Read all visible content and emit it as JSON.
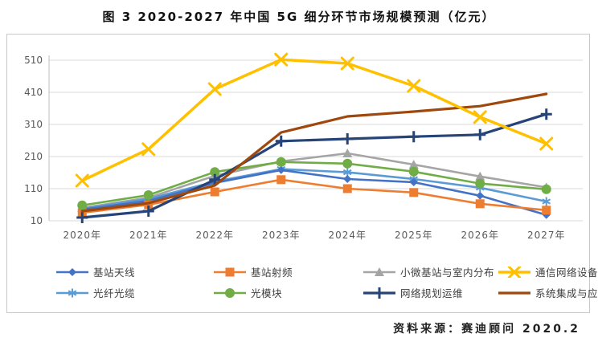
{
  "title": "图 3 2020-2027 年中国 5G 细分环节市场规模预测（亿元）",
  "source": "资料来源：赛迪顾问  2020.2",
  "chart_data": {
    "type": "line",
    "title": "图 3 2020-2027 年中国 5G 细分环节市场规模预测（亿元）",
    "categories": [
      "2020年",
      "2021年",
      "2022年",
      "2023年",
      "2024年",
      "2025年",
      "2026年",
      "2027年"
    ],
    "series": [
      {
        "name": "基站天线",
        "color": "#4472C4",
        "marker": "diamond",
        "values": [
          45,
          72,
          128,
          168,
          140,
          130,
          88,
          28
        ]
      },
      {
        "name": "基站射频",
        "color": "#ED7D31",
        "marker": "square",
        "values": [
          35,
          60,
          100,
          138,
          110,
          98,
          63,
          43
        ]
      },
      {
        "name": "小微基站与室内分布",
        "color": "#A5A5A5",
        "marker": "triangle",
        "values": [
          50,
          82,
          150,
          195,
          220,
          185,
          148,
          114
        ]
      },
      {
        "name": "通信网络设备",
        "color": "#FFC000",
        "marker": "x",
        "values": [
          135,
          233,
          420,
          512,
          500,
          430,
          333,
          250
        ]
      },
      {
        "name": "光纤光缆",
        "color": "#5B9BD5",
        "marker": "asterisk",
        "values": [
          48,
          78,
          132,
          171,
          161,
          140,
          113,
          70
        ]
      },
      {
        "name": "光模块",
        "color": "#70AD47",
        "marker": "circle",
        "values": [
          58,
          90,
          162,
          193,
          188,
          163,
          126,
          108
        ]
      },
      {
        "name": "网络规划运维",
        "color": "#264478",
        "marker": "plus",
        "values": [
          20,
          40,
          138,
          258,
          265,
          272,
          278,
          342
        ]
      },
      {
        "name": "系统集成与应用服务",
        "color": "#9E480E",
        "marker": "none",
        "values": [
          40,
          65,
          120,
          285,
          335,
          350,
          367,
          405
        ]
      }
    ],
    "ylim": [
      10,
      510
    ],
    "yticks": [
      10,
      110,
      210,
      310,
      410,
      510
    ],
    "xlabel": "",
    "ylabel": "",
    "grid": true,
    "legend_position": "bottom",
    "gridline_color": "#d9d9d9",
    "axis_color": "#bfbfbf",
    "tick_label_color": "#595959"
  }
}
